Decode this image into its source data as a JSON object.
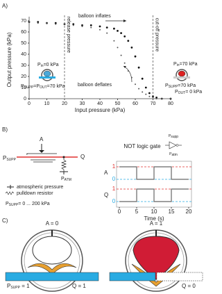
{
  "panels": {
    "a": "A)",
    "b": "B)",
    "c": "C)"
  },
  "chart_data": [
    {
      "type": "scatter",
      "x_label": "Input pressure (kPa)",
      "y_label": "Output pressure (kPa)",
      "xlim": [
        0,
        80
      ],
      "ylim": [
        0,
        70
      ],
      "xticks": [
        0,
        10,
        20,
        30,
        40,
        50,
        60,
        70,
        80
      ],
      "yticks": [
        0,
        10,
        20,
        30,
        40,
        50,
        60,
        70
      ],
      "series": [
        {
          "color": "#111111",
          "x": [
            0,
            5,
            10,
            15,
            20,
            25,
            30,
            35,
            40,
            44,
            48,
            50,
            52,
            54,
            56,
            58,
            60,
            62,
            64,
            66,
            68,
            70,
            72,
            75,
            80
          ],
          "values": [
            69,
            69,
            68,
            68,
            67,
            67,
            66,
            66,
            65,
            64,
            63,
            61,
            59,
            56,
            52,
            46,
            38,
            28,
            18,
            10,
            5,
            2,
            1,
            0,
            0
          ]
        },
        {
          "color": "#555555",
          "x": [
            0,
            5,
            10,
            15,
            20,
            25,
            30,
            35,
            40,
            44,
            48,
            50,
            52,
            54,
            56,
            58,
            60,
            62,
            64,
            66,
            68,
            70,
            72,
            75,
            80
          ],
          "values": [
            69,
            68,
            68,
            67,
            67,
            66,
            65,
            64,
            62,
            59,
            52,
            46,
            39,
            32,
            25,
            19,
            13,
            9,
            6,
            4,
            2,
            1,
            0,
            0,
            0
          ]
        }
      ],
      "vlines": [
        {
          "x": 20,
          "label": "release pressure"
        },
        {
          "x": 70,
          "label": "cut-off pressure"
        }
      ],
      "annotations": {
        "inflates": "balloon inflates",
        "deflates": "balloon deflates"
      },
      "left_state": {
        "p": "P",
        "in_sub": "in",
        "in_rest": "=0 kPa",
        "supp_sub": "SUPP",
        "eq": "=P",
        "out_sub": "OUT",
        "out_rest": "=70 kPa"
      },
      "right_state": {
        "p": "P",
        "in_sub": "in",
        "in_rest": "=70 kPa",
        "supp_sub": "SUPP",
        "supp_rest": "=70 kPa",
        "out_sub": "OUT",
        "out_rest": "= 0 kPa"
      }
    },
    {
      "type": "line",
      "title": "NOT logic gate",
      "x_label": "Time (s)",
      "xlim": [
        0,
        20
      ],
      "ylim": [
        0,
        1
      ],
      "xticks": [
        0,
        5,
        10,
        15,
        20
      ],
      "yticks": [
        0,
        1
      ],
      "ytick_colors": [
        "#29abe2",
        "#e0302e"
      ],
      "x": [
        0,
        5,
        5,
        10,
        10,
        15,
        15,
        20
      ],
      "series": [
        {
          "name": "A",
          "color": "#666666",
          "values": [
            1,
            1,
            0,
            0,
            1,
            1,
            0,
            0
          ]
        },
        {
          "name": "Q",
          "color": "#666666",
          "values": [
            0,
            0,
            1,
            1,
            0,
            0,
            1,
            1
          ]
        }
      ]
    }
  ],
  "gate_diagram": {
    "a": "A",
    "p": "P",
    "supp": "SUPP",
    "q": "Q",
    "atm": "ATM",
    "legend_atm": "atmospheric pressure",
    "legend_res": "pulldown resistor",
    "range": "= 0 ... 200 kPa",
    "sym_supp": "supp",
    "sym_atm": "atm"
  },
  "device_diagram": {
    "a0": "A = 0",
    "a1": "A = 1",
    "p": "P",
    "supp": "SUPP",
    "left_rest": " = 1",
    "q1": "Q = 1",
    "q0": "Q = 0"
  }
}
